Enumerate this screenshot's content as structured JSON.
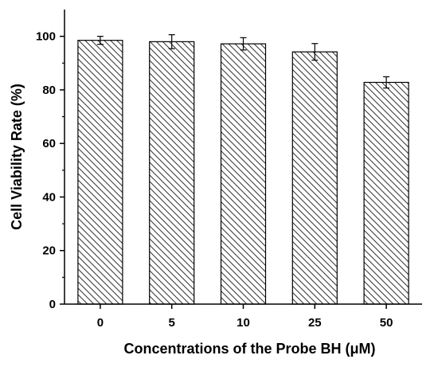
{
  "chart_data": {
    "type": "bar",
    "title": "",
    "xlabel": "Concentrations of the Probe BH (μM)",
    "ylabel": "Cell Viability Rate (%)",
    "categories": [
      "0",
      "5",
      "10",
      "25",
      "50"
    ],
    "values": [
      98.5,
      98.0,
      97.2,
      94.2,
      82.8
    ],
    "errors": [
      1.5,
      2.6,
      2.3,
      3.1,
      2.1
    ],
    "ylim": [
      0,
      110
    ],
    "yticks": [
      "0",
      "20",
      "40",
      "60",
      "80",
      "100"
    ],
    "bar_fill": "diagonal-hatch",
    "colors": {
      "stroke": "#000000",
      "background": "#ffffff"
    },
    "grid": false,
    "legend": "none"
  }
}
